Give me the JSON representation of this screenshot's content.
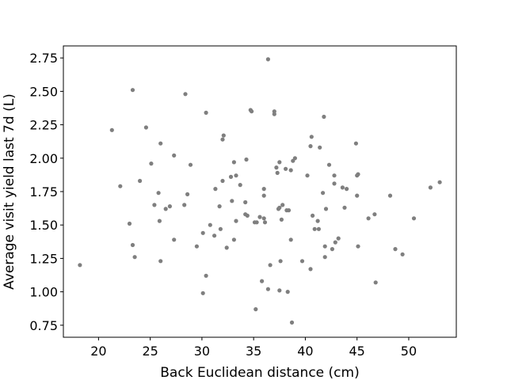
{
  "chart_data": {
    "type": "scatter",
    "title": "",
    "xlabel": "Back Euclidean distance (cm)",
    "ylabel": "Average visit yield last 7d (L)",
    "xlim": [
      16.6,
      54.6
    ],
    "ylim": [
      0.66,
      2.84
    ],
    "xticks": [
      20,
      25,
      30,
      35,
      40,
      45,
      50
    ],
    "yticks": [
      0.75,
      1.0,
      1.25,
      1.5,
      1.75,
      2.0,
      2.25,
      2.5,
      2.75
    ],
    "ytick_labels": [
      "0.75",
      "1.00",
      "1.25",
      "1.50",
      "1.75",
      "2.00",
      "2.25",
      "2.50",
      "2.75"
    ],
    "grid": false,
    "marker_color": "#7f7f7f",
    "points": [
      {
        "x": 18.2,
        "y": 1.2
      },
      {
        "x": 21.3,
        "y": 2.21
      },
      {
        "x": 22.1,
        "y": 1.79
      },
      {
        "x": 23.0,
        "y": 1.51
      },
      {
        "x": 23.3,
        "y": 2.51
      },
      {
        "x": 23.3,
        "y": 1.35
      },
      {
        "x": 23.5,
        "y": 1.26
      },
      {
        "x": 24.0,
        "y": 1.83
      },
      {
        "x": 24.6,
        "y": 2.23
      },
      {
        "x": 25.1,
        "y": 1.96
      },
      {
        "x": 25.4,
        "y": 1.65
      },
      {
        "x": 25.8,
        "y": 1.74
      },
      {
        "x": 25.9,
        "y": 1.53
      },
      {
        "x": 26.0,
        "y": 2.11
      },
      {
        "x": 26.0,
        "y": 1.23
      },
      {
        "x": 26.5,
        "y": 1.62
      },
      {
        "x": 26.9,
        "y": 1.64
      },
      {
        "x": 27.3,
        "y": 2.02
      },
      {
        "x": 27.3,
        "y": 1.39
      },
      {
        "x": 28.4,
        "y": 2.48
      },
      {
        "x": 28.3,
        "y": 1.65
      },
      {
        "x": 28.6,
        "y": 1.73
      },
      {
        "x": 28.9,
        "y": 1.95
      },
      {
        "x": 29.5,
        "y": 1.34
      },
      {
        "x": 30.1,
        "y": 1.44
      },
      {
        "x": 30.1,
        "y": 0.99
      },
      {
        "x": 30.4,
        "y": 2.34
      },
      {
        "x": 30.4,
        "y": 1.12
      },
      {
        "x": 30.8,
        "y": 1.5
      },
      {
        "x": 31.2,
        "y": 1.42
      },
      {
        "x": 31.3,
        "y": 1.77
      },
      {
        "x": 31.7,
        "y": 1.64
      },
      {
        "x": 31.8,
        "y": 1.47
      },
      {
        "x": 32.0,
        "y": 1.83
      },
      {
        "x": 32.0,
        "y": 2.14
      },
      {
        "x": 32.1,
        "y": 2.17
      },
      {
        "x": 32.4,
        "y": 1.33
      },
      {
        "x": 32.8,
        "y": 1.86
      },
      {
        "x": 32.9,
        "y": 1.68
      },
      {
        "x": 33.1,
        "y": 1.39
      },
      {
        "x": 33.1,
        "y": 1.97
      },
      {
        "x": 33.3,
        "y": 1.87
      },
      {
        "x": 33.3,
        "y": 1.53
      },
      {
        "x": 33.7,
        "y": 1.8
      },
      {
        "x": 34.2,
        "y": 1.67
      },
      {
        "x": 34.2,
        "y": 1.58
      },
      {
        "x": 34.3,
        "y": 1.99
      },
      {
        "x": 34.4,
        "y": 1.57
      },
      {
        "x": 34.7,
        "y": 2.36
      },
      {
        "x": 34.8,
        "y": 2.35
      },
      {
        "x": 35.1,
        "y": 1.52
      },
      {
        "x": 35.2,
        "y": 0.87
      },
      {
        "x": 35.3,
        "y": 1.52
      },
      {
        "x": 35.6,
        "y": 1.56
      },
      {
        "x": 35.8,
        "y": 1.08
      },
      {
        "x": 36.0,
        "y": 1.77
      },
      {
        "x": 36.0,
        "y": 1.72
      },
      {
        "x": 36.0,
        "y": 1.55
      },
      {
        "x": 36.1,
        "y": 1.52
      },
      {
        "x": 36.4,
        "y": 2.74
      },
      {
        "x": 36.4,
        "y": 1.02
      },
      {
        "x": 36.6,
        "y": 1.2
      },
      {
        "x": 37.0,
        "y": 2.33
      },
      {
        "x": 37.0,
        "y": 2.35
      },
      {
        "x": 37.2,
        "y": 1.93
      },
      {
        "x": 37.3,
        "y": 1.89
      },
      {
        "x": 37.4,
        "y": 1.62
      },
      {
        "x": 37.5,
        "y": 1.97
      },
      {
        "x": 37.5,
        "y": 1.63
      },
      {
        "x": 37.5,
        "y": 1.01
      },
      {
        "x": 37.6,
        "y": 1.23
      },
      {
        "x": 37.7,
        "y": 1.54
      },
      {
        "x": 37.8,
        "y": 1.65
      },
      {
        "x": 38.1,
        "y": 1.92
      },
      {
        "x": 38.2,
        "y": 1.61
      },
      {
        "x": 38.3,
        "y": 1.0
      },
      {
        "x": 38.4,
        "y": 1.61
      },
      {
        "x": 38.6,
        "y": 1.91
      },
      {
        "x": 38.6,
        "y": 1.39
      },
      {
        "x": 38.7,
        "y": 0.77
      },
      {
        "x": 38.8,
        "y": 1.98
      },
      {
        "x": 39.0,
        "y": 2.0
      },
      {
        "x": 39.7,
        "y": 1.23
      },
      {
        "x": 40.2,
        "y": 1.87
      },
      {
        "x": 40.5,
        "y": 1.17
      },
      {
        "x": 40.5,
        "y": 2.09
      },
      {
        "x": 40.6,
        "y": 2.16
      },
      {
        "x": 40.7,
        "y": 1.57
      },
      {
        "x": 40.9,
        "y": 1.47
      },
      {
        "x": 41.2,
        "y": 1.53
      },
      {
        "x": 41.3,
        "y": 1.47
      },
      {
        "x": 41.4,
        "y": 2.08
      },
      {
        "x": 41.7,
        "y": 1.74
      },
      {
        "x": 41.8,
        "y": 2.31
      },
      {
        "x": 41.9,
        "y": 1.34
      },
      {
        "x": 41.9,
        "y": 1.26
      },
      {
        "x": 42.0,
        "y": 1.62
      },
      {
        "x": 42.3,
        "y": 1.95
      },
      {
        "x": 42.6,
        "y": 1.32
      },
      {
        "x": 42.8,
        "y": 1.87
      },
      {
        "x": 42.8,
        "y": 1.81
      },
      {
        "x": 42.9,
        "y": 1.37
      },
      {
        "x": 43.2,
        "y": 1.4
      },
      {
        "x": 43.6,
        "y": 1.78
      },
      {
        "x": 43.8,
        "y": 1.63
      },
      {
        "x": 44.0,
        "y": 1.77
      },
      {
        "x": 44.9,
        "y": 2.11
      },
      {
        "x": 45.0,
        "y": 1.72
      },
      {
        "x": 45.0,
        "y": 1.87
      },
      {
        "x": 45.1,
        "y": 1.88
      },
      {
        "x": 45.1,
        "y": 1.34
      },
      {
        "x": 46.1,
        "y": 1.55
      },
      {
        "x": 46.7,
        "y": 1.58
      },
      {
        "x": 46.8,
        "y": 1.07
      },
      {
        "x": 48.2,
        "y": 1.72
      },
      {
        "x": 48.7,
        "y": 1.32
      },
      {
        "x": 49.4,
        "y": 1.28
      },
      {
        "x": 50.5,
        "y": 1.55
      },
      {
        "x": 52.1,
        "y": 1.78
      },
      {
        "x": 53.0,
        "y": 1.82
      }
    ]
  }
}
